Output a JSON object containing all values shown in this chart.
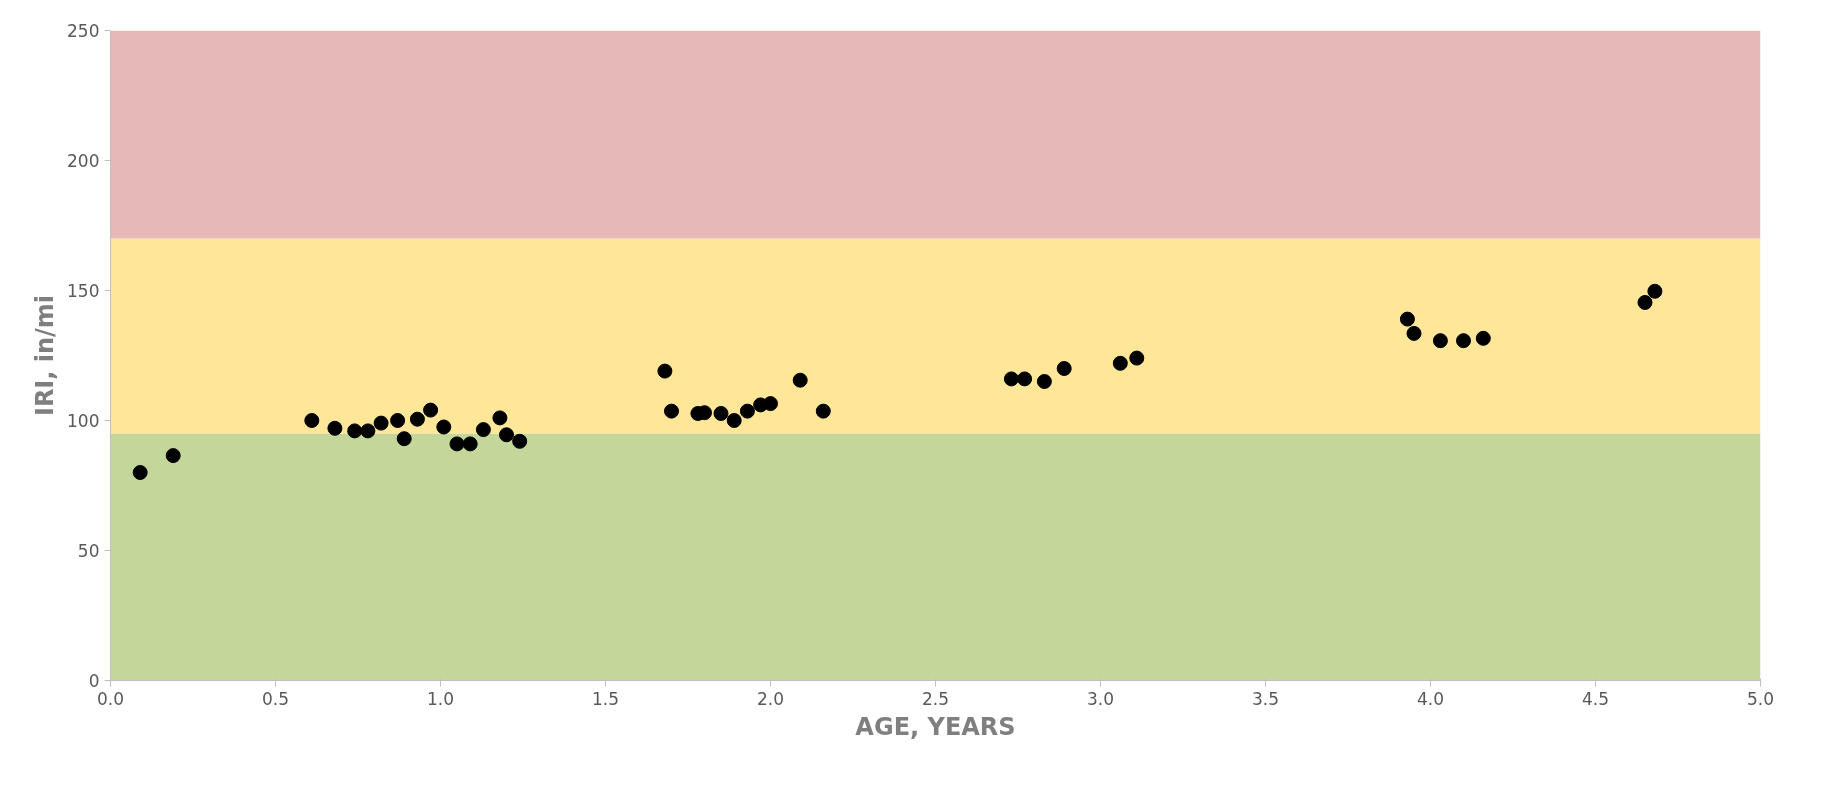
{
  "chart_data": {
    "type": "scatter",
    "xlabel": "AGE, YEARS",
    "ylabel": "IRI, in/mi",
    "xlim": [
      0,
      5
    ],
    "ylim": [
      0,
      250
    ],
    "xticks": [
      {
        "value": 0,
        "label": "0.0"
      },
      {
        "value": 0.5,
        "label": "0.5"
      },
      {
        "value": 1,
        "label": "1.0"
      },
      {
        "value": 1.5,
        "label": "1.5"
      },
      {
        "value": 2,
        "label": "2.0"
      },
      {
        "value": 2.5,
        "label": "2.5"
      },
      {
        "value": 3,
        "label": "3.0"
      },
      {
        "value": 3.5,
        "label": "3.5"
      },
      {
        "value": 4,
        "label": "4.0"
      },
      {
        "value": 4.5,
        "label": "4.5"
      },
      {
        "value": 5,
        "label": "5.0"
      }
    ],
    "yticks": [
      0,
      50,
      100,
      150,
      200,
      250
    ],
    "marker": "circle",
    "grid": false,
    "bands": [
      {
        "axis": "y",
        "from": 0,
        "to": 95,
        "color": "#c4d79b"
      },
      {
        "axis": "y",
        "from": 95,
        "to": 170,
        "color": "#ffe699"
      },
      {
        "axis": "y",
        "from": 170,
        "to": 250,
        "color": "#e6b8b7"
      }
    ],
    "series": [
      {
        "color": "#000000",
        "x": [
          0.09,
          0.19,
          0.61,
          0.68,
          0.74,
          0.78,
          0.82,
          0.87,
          0.89,
          0.93,
          0.97,
          1.01,
          1.05,
          1.09,
          1.13,
          1.18,
          1.2,
          1.24,
          1.68,
          1.7,
          1.78,
          1.8,
          1.85,
          1.89,
          1.93,
          1.97,
          2.0,
          2.09,
          2.16,
          2.73,
          2.77,
          2.83,
          2.89,
          3.06,
          3.11,
          3.93,
          3.95,
          4.03,
          4.1,
          4.16,
          4.65,
          4.68
        ],
        "values": [
          80,
          86.5,
          100,
          97,
          96,
          96,
          99,
          100,
          93,
          100.5,
          104,
          97.5,
          91,
          91,
          96.5,
          101,
          94.5,
          92,
          119,
          103.6,
          102.7,
          103,
          102.7,
          100,
          103.6,
          106,
          106.5,
          115.5,
          103.6,
          116,
          116,
          115,
          120,
          122,
          124,
          139,
          133.5,
          130.7,
          130.7,
          131.6,
          145.4,
          149.7
        ]
      }
    ]
  }
}
